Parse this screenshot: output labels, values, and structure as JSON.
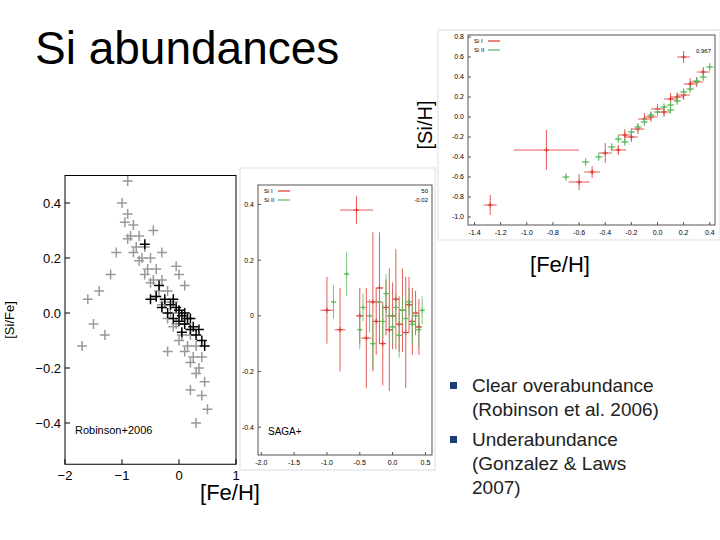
{
  "title": "Si abundances",
  "bullets": [
    "Clear overabundance (Robinson et al. 2006)",
    "Underabundance (Gonzalez & Laws 2007)"
  ],
  "chart_data": [
    {
      "type": "scatter",
      "x_label": "[Fe/H]",
      "y_label": "[Si/Fe]",
      "annotations": [
        "Robinson+2006"
      ],
      "grid": false,
      "xlim": [
        -2,
        1
      ],
      "ylim": [
        -0.55,
        0.5
      ],
      "xticks": [
        {
          "value": -2,
          "label": "−2"
        },
        {
          "value": -1,
          "label": "−1"
        },
        0,
        1
      ],
      "yticks": [
        0.4,
        0.2,
        {
          "value": 0,
          "label": "0.0"
        },
        {
          "value": -0.2,
          "label": "−0.2"
        },
        {
          "value": -0.4,
          "label": "−0.4"
        }
      ],
      "series": [
        {
          "color": "#999999",
          "marker": "plus",
          "x": [
            -1.0,
            -0.95,
            -0.9,
            -0.85,
            -0.8,
            -0.75,
            -0.7,
            -0.65,
            -0.6,
            -0.55,
            -0.5,
            -0.45,
            -0.4,
            -0.35,
            -0.3,
            -0.25,
            -0.2,
            -0.15,
            -0.1,
            -0.05,
            0.0,
            0.05,
            0.1,
            0.15,
            0.2,
            0.25,
            0.3,
            0.35,
            0.4,
            0.45,
            -0.9,
            -0.8,
            -0.7,
            -0.6,
            -0.5,
            -0.4,
            -0.3,
            -0.2,
            -0.1,
            0.0,
            0.1,
            0.2,
            0.3,
            0.4,
            0.5,
            -1.6,
            -1.5,
            -1.4,
            -1.3,
            -1.7,
            -1.2,
            -1.1,
            -0.2,
            0.0,
            0.2,
            -0.3,
            -0.45,
            0.3,
            0.1,
            -0.05,
            -0.9
          ],
          "values": [
            0.4,
            0.33,
            0.36,
            0.28,
            0.32,
            0.24,
            0.28,
            0.2,
            0.24,
            0.16,
            0.2,
            0.12,
            0.16,
            0.08,
            0.12,
            0.04,
            0.08,
            0.0,
            0.04,
            -0.04,
            0.0,
            -0.08,
            -0.04,
            -0.12,
            -0.08,
            -0.16,
            -0.12,
            -0.2,
            -0.16,
            -0.25,
            0.27,
            0.22,
            0.19,
            0.14,
            0.11,
            0.06,
            0.03,
            -0.02,
            -0.05,
            -0.1,
            -0.14,
            -0.18,
            -0.22,
            -0.3,
            -0.35,
            0.05,
            -0.04,
            0.08,
            -0.08,
            -0.12,
            0.14,
            0.22,
            -0.14,
            0.14,
            -0.28,
            0.22,
            0.3,
            -0.4,
            0.1,
            0.17,
            0.48
          ]
        },
        {
          "color": "#000000",
          "marker": "plus",
          "x": [
            -0.6,
            -0.5,
            -0.4,
            -0.3,
            -0.25,
            -0.2,
            -0.15,
            -0.1,
            -0.05,
            0.0,
            0.0,
            0.05,
            0.1,
            0.1,
            0.15,
            0.2,
            0.2,
            0.25,
            0.3,
            0.35,
            0.4,
            0.45,
            -0.35,
            -0.1,
            0.05
          ],
          "values": [
            0.25,
            0.05,
            0.06,
            0.02,
            0.05,
            0.0,
            0.03,
            -0.02,
            0.02,
            -0.03,
            0.01,
            -0.01,
            -0.04,
            0.0,
            -0.02,
            -0.06,
            -0.02,
            -0.05,
            -0.08,
            -0.06,
            -0.1,
            -0.12,
            0.1,
            0.05,
            -0.07
          ]
        }
      ]
    },
    {
      "type": "scatter",
      "annotations": [
        "SAGA+",
        "50",
        "-0.02"
      ],
      "legend": "upper left",
      "grid": false,
      "xlim": [
        -2.05,
        0.6
      ],
      "ylim": [
        -0.5,
        0.47
      ],
      "xticks": [
        {
          "value": -2,
          "label": "-2.0"
        },
        -1.5,
        {
          "value": -1,
          "label": "-1.0"
        },
        -0.5,
        {
          "value": 0,
          "label": "0.0"
        },
        0.5
      ],
      "yticks": [
        0.4,
        0.2,
        0,
        -0.2,
        -0.4
      ],
      "series": [
        {
          "name": "Si I",
          "color": "#d9342b",
          "marker": "plus",
          "x": [
            -1.0,
            -0.8,
            -0.55,
            -0.5,
            -0.4,
            -0.3,
            -0.25,
            -0.2,
            -0.15,
            -0.1,
            -0.05,
            0.0,
            0.05,
            0.1,
            0.15,
            0.2,
            0.25,
            0.3,
            0.35,
            0.4
          ],
          "values": [
            0.02,
            -0.05,
            0.38,
            0.0,
            -0.08,
            0.05,
            -0.02,
            0.1,
            -0.1,
            0.03,
            -0.05,
            0.0,
            0.06,
            -0.03,
            0.02,
            -0.06,
            0.04,
            -0.02,
            0.01,
            -0.04
          ],
          "xerr": [
            0.1,
            0.08,
            0.25,
            0.06,
            0.08,
            0.1,
            0.05,
            0.06,
            0.05,
            0.05,
            0.06,
            0.05,
            0.05,
            0.05,
            0.05,
            0.05,
            0.05,
            0.05,
            0.05,
            0.05
          ],
          "yerr": [
            0.12,
            0.15,
            0.05,
            0.1,
            0.18,
            0.25,
            0.12,
            0.2,
            0.15,
            0.1,
            0.22,
            0.12,
            0.18,
            0.1,
            0.15,
            0.2,
            0.1,
            0.12,
            0.08,
            0.1
          ]
        },
        {
          "name": "Si II",
          "color": "#5cb85c",
          "marker": "plus",
          "x": [
            -0.9,
            -0.7,
            -0.5,
            -0.45,
            -0.35,
            -0.3,
            -0.2,
            -0.15,
            -0.1,
            -0.05,
            0.0,
            0.05,
            0.1,
            0.15,
            0.2,
            0.25,
            0.3,
            0.35,
            0.4,
            0.45
          ],
          "values": [
            0.05,
            0.15,
            -0.05,
            0.03,
            0.0,
            -0.1,
            0.05,
            -0.02,
            0.08,
            0.0,
            -0.04,
            0.03,
            -0.07,
            0.02,
            -0.01,
            0.05,
            -0.03,
            0.0,
            -0.05,
            0.02
          ],
          "xerr": [
            0.04,
            0.04,
            0.04,
            0.04,
            0.04,
            0.04,
            0.04,
            0.04,
            0.04,
            0.04,
            0.04,
            0.04,
            0.04,
            0.04,
            0.04,
            0.04,
            0.04,
            0.04,
            0.04,
            0.04
          ],
          "yerr": [
            0.06,
            0.08,
            0.07,
            0.05,
            0.06,
            0.09,
            0.05,
            0.06,
            0.07,
            0.05,
            0.06,
            0.05,
            0.08,
            0.05,
            0.06,
            0.05,
            0.07,
            0.05,
            0.06,
            0.05
          ]
        }
      ]
    },
    {
      "type": "scatter",
      "x_label": "[Fe/H]",
      "y_label": "[Si/H]",
      "annotations": [
        "0.967"
      ],
      "legend": "upper left",
      "grid": false,
      "xlim": [
        -1.45,
        0.44
      ],
      "ylim": [
        -1.08,
        0.82
      ],
      "xticks": [
        -1.4,
        -1.2,
        {
          "value": -1,
          "label": "-1.0"
        },
        -0.8,
        -0.6,
        -0.4,
        -0.2,
        {
          "value": 0,
          "label": "0.0"
        },
        0.2,
        0.4
      ],
      "yticks": [
        0.8,
        0.6,
        0.4,
        0.2,
        {
          "value": 0,
          "label": "0.0"
        },
        -0.2,
        -0.4,
        -0.6,
        -0.8,
        {
          "value": -1,
          "label": "-1.0"
        }
      ],
      "series": [
        {
          "name": "Si I",
          "color": "#d9342b",
          "marker": "plus",
          "x": [
            -1.28,
            -0.85,
            -0.6,
            -0.5,
            -0.4,
            -0.3,
            -0.25,
            -0.2,
            -0.15,
            -0.1,
            -0.05,
            0.0,
            0.05,
            0.1,
            0.15,
            0.2,
            0.25,
            0.3,
            0.35,
            0.2
          ],
          "values": [
            -0.88,
            -0.33,
            -0.65,
            -0.55,
            -0.36,
            -0.33,
            -0.18,
            -0.2,
            -0.12,
            -0.02,
            0.0,
            0.08,
            0.05,
            0.18,
            0.2,
            0.22,
            0.33,
            0.35,
            0.45,
            0.6
          ],
          "xerr": [
            0.05,
            0.25,
            0.08,
            0.06,
            0.05,
            0.06,
            0.05,
            0.05,
            0.05,
            0.05,
            0.05,
            0.05,
            0.05,
            0.05,
            0.05,
            0.05,
            0.05,
            0.05,
            0.05,
            0.05
          ],
          "yerr": [
            0.1,
            0.2,
            0.08,
            0.06,
            0.1,
            0.05,
            0.06,
            0.05,
            0.05,
            0.06,
            0.05,
            0.05,
            0.05,
            0.06,
            0.05,
            0.05,
            0.06,
            0.05,
            0.05,
            0.06
          ]
        },
        {
          "name": "Si II",
          "color": "#5cb85c",
          "marker": "plus",
          "x": [
            -0.7,
            -0.55,
            -0.45,
            -0.35,
            -0.3,
            -0.2,
            -0.15,
            -0.1,
            -0.05,
            0.0,
            0.05,
            0.1,
            0.15,
            0.2,
            0.25,
            0.3,
            0.35,
            0.4,
            0.1,
            -0.25
          ],
          "values": [
            -0.6,
            -0.45,
            -0.4,
            -0.3,
            -0.22,
            -0.15,
            -0.1,
            -0.05,
            0.02,
            0.05,
            0.1,
            0.12,
            0.16,
            0.25,
            0.28,
            0.36,
            0.4,
            0.5,
            0.07,
            -0.25
          ],
          "xerr": [
            0.03,
            0.03,
            0.03,
            0.03,
            0.03,
            0.03,
            0.03,
            0.03,
            0.03,
            0.03,
            0.03,
            0.03,
            0.03,
            0.03,
            0.03,
            0.03,
            0.03,
            0.03,
            0.03,
            0.03
          ],
          "yerr": [
            0.04,
            0.04,
            0.04,
            0.04,
            0.04,
            0.04,
            0.04,
            0.04,
            0.04,
            0.04,
            0.04,
            0.04,
            0.04,
            0.04,
            0.04,
            0.04,
            0.04,
            0.04,
            0.04,
            0.04
          ]
        }
      ]
    }
  ]
}
